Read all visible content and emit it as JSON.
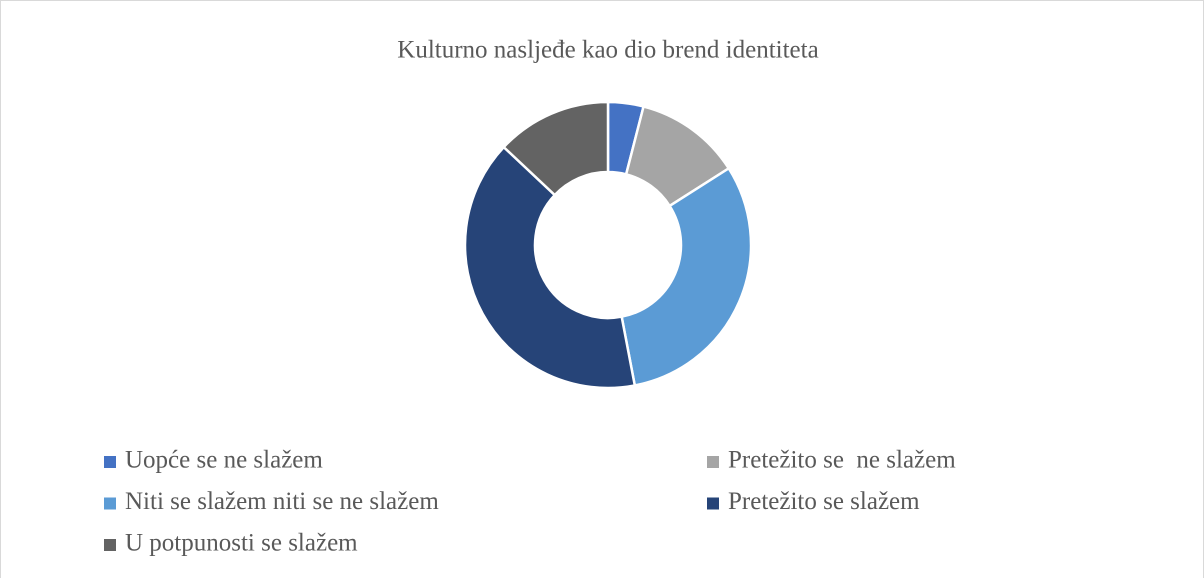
{
  "chart_data": {
    "type": "donut",
    "title": "Kulturno nasljeđe kao dio brend identiteta",
    "categories": [
      "Uopće se ne slažem",
      "Pretežito se  ne slažem",
      "Niti se slažem niti se ne slažem",
      "Pretežito se slažem",
      "U potpunosti se slažem"
    ],
    "values": [
      4,
      12,
      31,
      40,
      13
    ],
    "colors": [
      "#4472c4",
      "#a5a5a5",
      "#5b9bd5",
      "#264478",
      "#636363"
    ],
    "legend": "bottom"
  }
}
